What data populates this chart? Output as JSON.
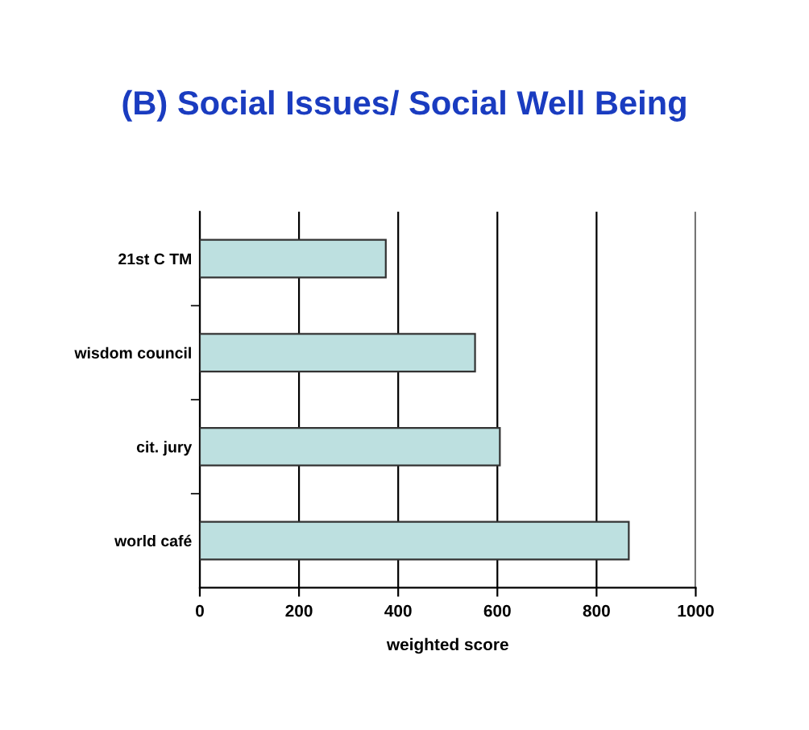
{
  "chart_data": {
    "type": "bar",
    "orientation": "horizontal",
    "title": "(B) Social Issues/ Social Well Being",
    "xlabel": "weighted score",
    "categories": [
      "21st C TM",
      "wisdom council",
      "cit. jury",
      "world café"
    ],
    "values": [
      375,
      555,
      605,
      865
    ],
    "color": "#bde0e0",
    "xlim": [
      0,
      1000
    ],
    "xticks": [
      0,
      200,
      400,
      600,
      800,
      1000
    ],
    "grid": "x"
  }
}
